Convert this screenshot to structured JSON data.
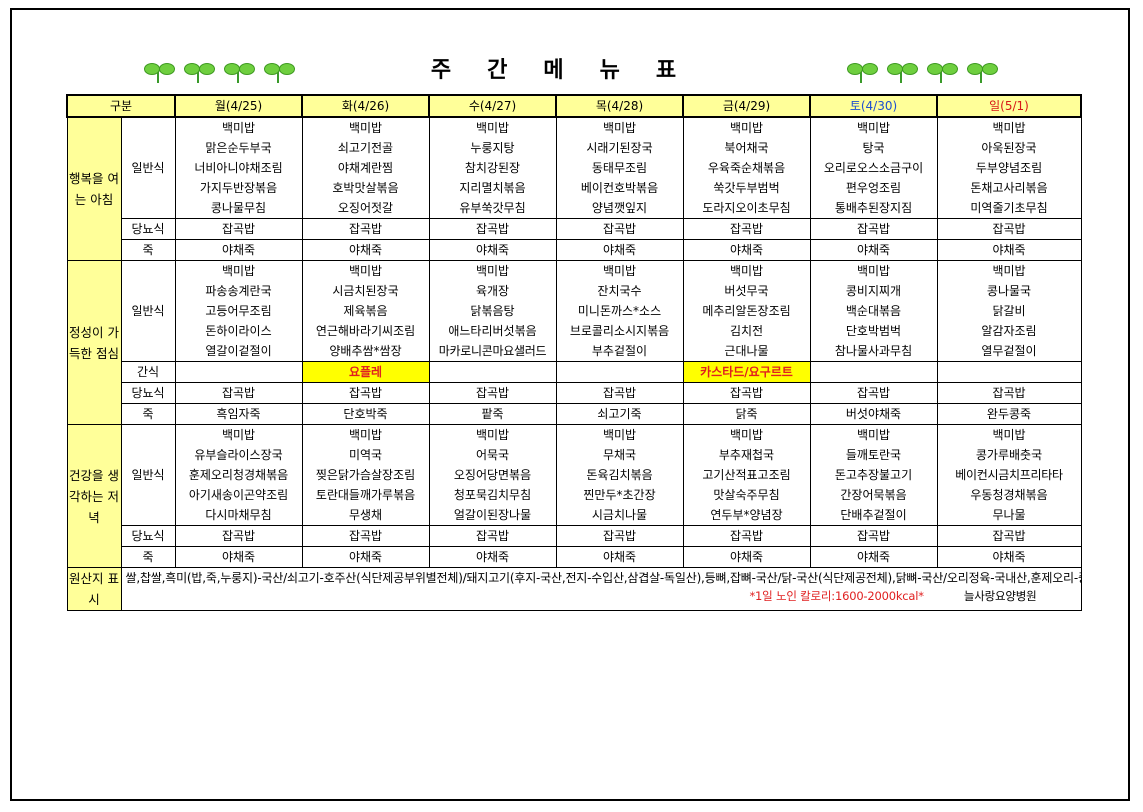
{
  "title": "주간메뉴표",
  "header": {
    "label": "구분",
    "days": [
      "월(4/25)",
      "화(4/26)",
      "수(4/27)",
      "목(4/28)",
      "금(4/29)",
      "토(4/30)",
      "일(5/1)"
    ]
  },
  "breakfast": {
    "section": "행복을 여는 아침",
    "general_label": "일반식",
    "general": [
      [
        "백미밥",
        "맑은순두부국",
        "너비아니야채조림",
        "가지두반장볶음",
        "콩나물무침"
      ],
      [
        "백미밥",
        "쇠고기전골",
        "야채계란찜",
        "호박맛살볶음",
        "오징어젓갈"
      ],
      [
        "백미밥",
        "누룽지탕",
        "참치강된장",
        "지리멸치볶음",
        "유부쑥갓무침"
      ],
      [
        "백미밥",
        "시래기된장국",
        "동태무조림",
        "베이컨호박볶음",
        "양념깻잎지"
      ],
      [
        "백미밥",
        "북어채국",
        "우육죽순채볶음",
        "쑥갓두부범벅",
        "도라지오이초무침"
      ],
      [
        "백미밥",
        "탕국",
        "오리로오스소금구이",
        "편우엉조림",
        "통배추된장지짐"
      ],
      [
        "백미밥",
        "아욱된장국",
        "두부양념조림",
        "돈채고사리볶음",
        "미역줄기초무침"
      ]
    ],
    "diabetic_label": "당뇨식",
    "diabetic": [
      "잡곡밥",
      "잡곡밥",
      "잡곡밥",
      "잡곡밥",
      "잡곡밥",
      "잡곡밥",
      "잡곡밥"
    ],
    "porridge_label": "죽",
    "porridge": [
      "야채죽",
      "야채죽",
      "야채죽",
      "야채죽",
      "야채죽",
      "야채죽",
      "야채죽"
    ]
  },
  "lunch": {
    "section": "정성이 가득한 점심",
    "general_label": "일반식",
    "general": [
      [
        "백미밥",
        "파송송계란국",
        "고등어무조림",
        "돈하이라이스",
        "열갈이겉절이"
      ],
      [
        "백미밥",
        "시금치된장국",
        "제육볶음",
        "연근해바라기씨조림",
        "양배추쌈*쌈장"
      ],
      [
        "백미밥",
        "육개장",
        "닭볶음탕",
        "애느타리버섯볶음",
        "마카로니콘마요샐러드"
      ],
      [
        "백미밥",
        "잔치국수",
        "미니돈까스*소스",
        "브로콜리소시지볶음",
        "부추겉절이"
      ],
      [
        "백미밥",
        "버섯무국",
        "메추리알돈장조림",
        "김치전",
        "근대나물"
      ],
      [
        "백미밥",
        "콩비지찌개",
        "백순대볶음",
        "단호박범벅",
        "참나물사과무침"
      ],
      [
        "백미밥",
        "콩나물국",
        "닭갈비",
        "알감자조림",
        "열무겉절이"
      ]
    ],
    "snack_label": "간식",
    "snack": [
      "",
      "요플레",
      "",
      "",
      "카스타드/요구르트",
      "",
      ""
    ],
    "diabetic_label": "당뇨식",
    "diabetic": [
      "잡곡밥",
      "잡곡밥",
      "잡곡밥",
      "잡곡밥",
      "잡곡밥",
      "잡곡밥",
      "잡곡밥"
    ],
    "porridge_label": "죽",
    "porridge": [
      "흑임자죽",
      "단호박죽",
      "팥죽",
      "쇠고기죽",
      "닭죽",
      "버섯야채죽",
      "완두콩죽"
    ]
  },
  "dinner": {
    "section": "건강을 생각하는 저녁",
    "general_label": "일반식",
    "general": [
      [
        "백미밥",
        "유부슬라이스장국",
        "훈제오리청경채볶음",
        "아기새송이곤약조림",
        "다시마채무침"
      ],
      [
        "백미밥",
        "미역국",
        "찢은닭가슴살장조림",
        "토란대들깨가루볶음",
        "무생채"
      ],
      [
        "백미밥",
        "어묵국",
        "오징어당면볶음",
        "청포묵김치무침",
        "얼갈이된장나물"
      ],
      [
        "백미밥",
        "무채국",
        "돈육김치볶음",
        "찐만두*초간장",
        "시금치나물"
      ],
      [
        "백미밥",
        "부추재첩국",
        "고기산적표고조림",
        "맛살숙주무침",
        "연두부*양념장"
      ],
      [
        "백미밥",
        "들깨토란국",
        "돈고추장불고기",
        "간장어묵볶음",
        "단배추겉절이"
      ],
      [
        "백미밥",
        "콩가루배춧국",
        "베이컨시금치프리타타",
        "우동청경채볶음",
        "무나물"
      ]
    ],
    "diabetic_label": "당뇨식",
    "diabetic": [
      "잡곡밥",
      "잡곡밥",
      "잡곡밥",
      "잡곡밥",
      "잡곡밥",
      "잡곡밥",
      "잡곡밥"
    ],
    "porridge_label": "죽",
    "porridge": [
      "야채죽",
      "야채죽",
      "야채죽",
      "야채죽",
      "야채죽",
      "야채죽",
      "야채죽"
    ]
  },
  "origin": {
    "label": "원산지 표시",
    "text": "쌀,찹쌀,흑미(밥,죽,누룽지)-국산/쇠고기-호주산(식단제공부위별전체)/돼지고기(후지-국산,전지-수입산,삼겹살-독일산),등뼈,잡뼈-국산/닭-국산(식단제공전체),닭뼈-국산/오리정육-국내산,훈제오리-중국산/미꾸라지-중국산/고등어-국내산/명태(동태-미국산,동태고니-수입산,코다리-동태포-러시아산)/갈치-남아공산/오징어-칠레산/낙지-수입산/베이컨(돼지-외국산)/꽃게-중국산/아귀-중국산/쭈꾸미-베트남산/비엔나소시지(닭-국산,돼지-국산)/스모크햄(닭-국산,돼지-국산)/미트볼(닭-국산,돼지-국산)/해물동그랑땡(오징어-외국산,닭-국산)/동그랑땡(돼지-국산,닭-국산)/고기산적(돼지-국산,닭-국산)/치킨(닭-국산)/배추김치(중국산)/봄동겉절이(봄동-국산,고추가루-중국산)단배추겉절이(단배추-국산,고추가루-중국산)/얼갈이겉절이(얼갈이-국산,고추가루-중국산)/두부,순두부,연두부,콩비지(콩-수입산:식단제공전체)/오징어젓갈(오징어-중국산)/명엽채(명태-수입산)/진미채(오징어-페루산)/참치캔(가다랑어-원양산)/콩국수(콩-중국산)/고기경단(돈육:국내산)",
    "calorie": "*1일 노인 칼로리:1600-2000kcal*",
    "hospital": "늘사랑요양병원"
  },
  "colors": {
    "header_bg": "#ffff99",
    "highlight_bg": "#ffff00",
    "highlight_text": "#e02020",
    "saturday": "#1e4fcf",
    "sunday": "#d81818"
  }
}
